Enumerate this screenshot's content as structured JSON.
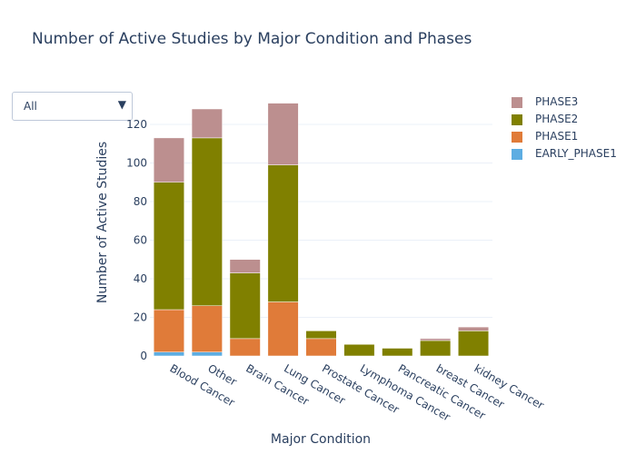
{
  "title": "Number of Active Studies by Major Condition and Phases",
  "dropdown": {
    "selected": "All",
    "arrow_icon": "triangle-down-icon"
  },
  "chart_data": {
    "type": "bar",
    "barmode": "stack",
    "title": "Number of Active Studies by Major Condition and Phases",
    "xlabel": "Major Condition",
    "ylabel": "Number of Active Studies",
    "ylim": [
      0,
      135
    ],
    "yticks": [
      0,
      20,
      40,
      60,
      80,
      100,
      120
    ],
    "grid": true,
    "legend_position": "top-right",
    "categories": [
      "Blood Cancer",
      "Other",
      "Brain Cancer",
      "Lung Cancer",
      "Prostate Cancer",
      "Lymphoma Cancer",
      "Pancreatic Cancer",
      "breast Cancer",
      "kidney Cancer"
    ],
    "series": [
      {
        "name": "EARLY_PHASE1",
        "color": "#5DADE2",
        "values": [
          2,
          2,
          0,
          0,
          0,
          0,
          0,
          0,
          0
        ]
      },
      {
        "name": "PHASE1",
        "color": "#E07B39",
        "values": [
          22,
          24,
          9,
          28,
          9,
          0,
          0,
          0,
          0
        ]
      },
      {
        "name": "PHASE2",
        "color": "#808000",
        "values": [
          66,
          87,
          34,
          71,
          4,
          6,
          4,
          8,
          13
        ]
      },
      {
        "name": "PHASE3",
        "color": "#BC8F8F",
        "values": [
          23,
          15,
          7,
          32,
          0,
          0,
          0,
          1,
          2
        ]
      }
    ]
  }
}
